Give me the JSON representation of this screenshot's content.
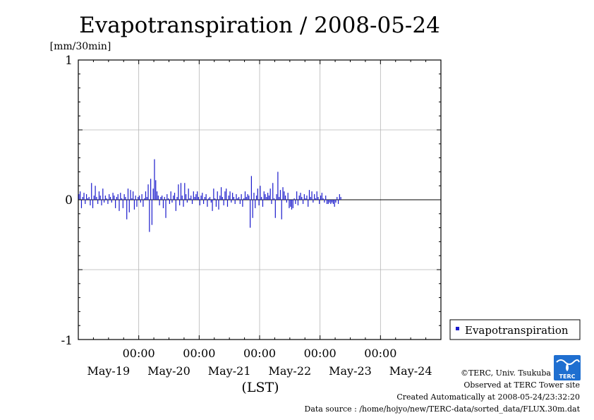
{
  "chart_data": {
    "type": "bar",
    "title": "Evapotranspiration / 2008-05-24",
    "ylabel": "[mm/30min]",
    "xlabel": "(LST)",
    "ylim": [
      -1,
      1
    ],
    "y_ticks": [
      "1",
      "0",
      "-1"
    ],
    "x_range_hours": [
      0,
      144
    ],
    "x_ticks": [
      {
        "hour": 24,
        "time": "00:00"
      },
      {
        "hour": 48,
        "time": "00:00"
      },
      {
        "hour": 72,
        "time": "00:00"
      },
      {
        "hour": 96,
        "time": "00:00"
      },
      {
        "hour": 120,
        "time": "00:00"
      }
    ],
    "day_labels": [
      "May-19",
      "May-20",
      "May-21",
      "May-22",
      "May-23",
      "May-24"
    ],
    "grid": true,
    "legend_position": "bottom-right outside",
    "series": [
      {
        "name": "Evapotranspiration",
        "color": "#1a1acc",
        "interval_hours": 0.5,
        "start_hour": 0,
        "values": [
          0.04,
          0.06,
          -0.06,
          0.02,
          0.05,
          -0.03,
          0.04,
          0.01,
          0.02,
          -0.04,
          0.12,
          -0.06,
          0.03,
          0.1,
          0.02,
          -0.03,
          0.06,
          0.03,
          -0.04,
          0.08,
          -0.02,
          0.03,
          0.01,
          -0.03,
          0.04,
          0.02,
          -0.02,
          0.05,
          0.03,
          -0.06,
          0.02,
          0.04,
          -0.08,
          0.05,
          0.01,
          -0.06,
          0.04,
          0.02,
          -0.14,
          0.08,
          -0.09,
          0.07,
          0.01,
          0.06,
          -0.07,
          0.03,
          -0.05,
          0.02,
          0.03,
          -0.02,
          0.04,
          -0.05,
          0.01,
          0.06,
          0.02,
          0.11,
          -0.23,
          0.15,
          -0.18,
          0.08,
          0.29,
          0.14,
          0.06,
          0.03,
          -0.04,
          0.02,
          0.03,
          -0.06,
          0.02,
          -0.13,
          0.04,
          0.01,
          -0.03,
          0.06,
          -0.02,
          0.03,
          0.05,
          -0.08,
          0.02,
          0.11,
          -0.04,
          0.12,
          0.03,
          -0.05,
          0.12,
          0.04,
          -0.02,
          0.08,
          0.01,
          0.03,
          -0.03,
          0.06,
          0.02,
          0.04,
          0.06,
          0.02,
          -0.04,
          0.03,
          0.05,
          -0.03,
          0.02,
          0.04,
          -0.05,
          0.01,
          0.02,
          -0.02,
          -0.08,
          0.08,
          0.01,
          -0.05,
          0.06,
          -0.07,
          0.03,
          0.09,
          0.02,
          -0.04,
          0.06,
          0.08,
          -0.05,
          0.03,
          0.06,
          -0.02,
          0.05,
          0.02,
          -0.03,
          0.04,
          0.01,
          0.02,
          -0.03,
          0.04,
          -0.05,
          0.01,
          0.06,
          0.02,
          0.04,
          0.03,
          -0.2,
          0.17,
          -0.13,
          0.05,
          -0.06,
          0.03,
          0.08,
          -0.04,
          0.1,
          0.02,
          -0.05,
          0.06,
          0.04,
          0.02,
          0.05,
          0.03,
          0.08,
          -0.03,
          0.12,
          0.01,
          -0.13,
          0.04,
          0.2,
          0.02,
          0.07,
          -0.14,
          0.09,
          0.06,
          0.03,
          -0.02,
          0.05,
          -0.06,
          -0.05,
          -0.07,
          -0.06,
          0.01,
          -0.03,
          0.06,
          -0.04,
          0.03,
          0.05,
          0.02,
          -0.03,
          0.04,
          0.01,
          0.03,
          -0.05,
          0.07,
          0.02,
          0.06,
          -0.02,
          0.04,
          0.01,
          0.06,
          0.02,
          -0.03,
          0.03,
          0.05,
          0.01,
          -0.02,
          0.03,
          -0.03,
          -0.03,
          -0.02,
          -0.03,
          -0.02,
          -0.03,
          -0.05,
          -0.02,
          0.02,
          -0.03,
          0.04,
          0.02
        ]
      }
    ]
  },
  "footer": {
    "copyright": "©TERC, Univ. Tsukuba",
    "observed": "Observed at TERC Tower site",
    "created": "Created Automatically at 2008-05-24/23:32:20",
    "source": "Data source : /home/hojyo/new/TERC-data/sorted_data/FLUX.30m.dat"
  },
  "logo": {
    "text": "TERC",
    "color": "#1f6fd0"
  },
  "legend": {
    "label": "Evapotranspiration",
    "marker_color": "#1a1acc"
  }
}
